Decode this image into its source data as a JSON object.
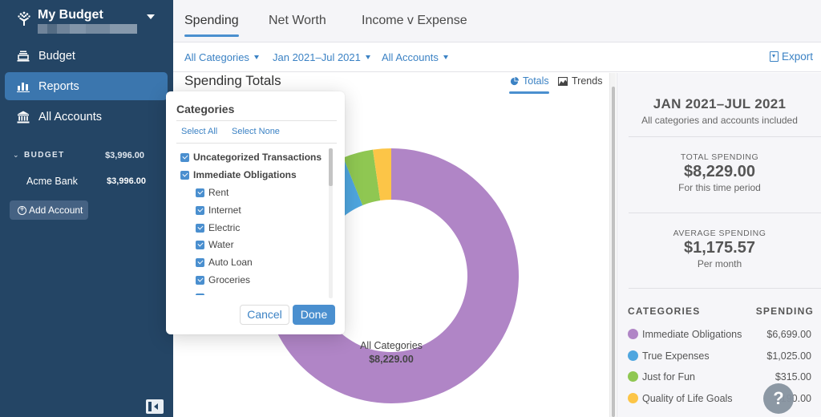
{
  "sidebar": {
    "budget_name": "My Budget",
    "nav": [
      {
        "label": "Budget",
        "icon": "budget-icon",
        "active": false
      },
      {
        "label": "Reports",
        "icon": "bar-chart-icon",
        "active": true
      },
      {
        "label": "All Accounts",
        "icon": "bank-icon",
        "active": false
      }
    ],
    "account_group": {
      "label": "BUDGET",
      "amount": "$3,996.00"
    },
    "accounts": [
      {
        "name": "Acme Bank",
        "amount": "$3,996.00"
      }
    ],
    "add_account_label": "Add Account"
  },
  "tabs": [
    {
      "label": "Spending",
      "active": true
    },
    {
      "label": "Net Worth",
      "active": false
    },
    {
      "label": "Income v Expense",
      "active": false
    }
  ],
  "filters": {
    "categories": "All Categories",
    "date_range": "Jan 2021–Jul 2021",
    "accounts": "All Accounts",
    "export_label": "Export"
  },
  "content": {
    "title": "Spending Totals",
    "view_toggle": {
      "totals": "Totals",
      "trends": "Trends"
    },
    "donut_center": {
      "label": "All Categories",
      "value": "$8,229.00"
    }
  },
  "popover": {
    "title": "Categories",
    "select_all": "Select All",
    "select_none": "Select None",
    "items": [
      {
        "label": "Uncategorized Transactions",
        "level": 0,
        "checked": true
      },
      {
        "label": "Immediate Obligations",
        "level": 0,
        "checked": true
      },
      {
        "label": "Rent",
        "level": 1,
        "checked": true
      },
      {
        "label": "Internet",
        "level": 1,
        "checked": true
      },
      {
        "label": "Electric",
        "level": 1,
        "checked": true
      },
      {
        "label": "Water",
        "level": 1,
        "checked": true
      },
      {
        "label": "Auto Loan",
        "level": 1,
        "checked": true
      },
      {
        "label": "Groceries",
        "level": 1,
        "checked": true
      }
    ],
    "cancel_label": "Cancel",
    "done_label": "Done"
  },
  "summary": {
    "range": "JAN 2021–JUL 2021",
    "range_note": "All categories and accounts included",
    "total": {
      "caption": "TOTAL SPENDING",
      "value": "$8,229.00",
      "note": "For this time period"
    },
    "average": {
      "caption": "AVERAGE SPENDING",
      "value": "$1,175.57",
      "note": "Per month"
    },
    "table_headers": {
      "category": "CATEGORIES",
      "spending": "SPENDING"
    },
    "categories": [
      {
        "name": "Immediate Obligations",
        "amount": "$6,699.00",
        "color": "#b085c6"
      },
      {
        "name": "True Expenses",
        "amount": "$1,025.00",
        "color": "#4fa6df"
      },
      {
        "name": "Just for Fun",
        "amount": "$315.00",
        "color": "#8fc752"
      },
      {
        "name": "Quality of Life Goals",
        "amount": "$190.00",
        "color": "#fcc547"
      }
    ]
  },
  "help_label": "?",
  "colors": {
    "sidebar_bg": "#244565",
    "active_nav": "#3b76ae",
    "accent": "#4a8fcf",
    "link": "#3b82c4"
  },
  "chart_data": {
    "type": "pie",
    "title": "Spending Totals",
    "center_label": "All Categories",
    "center_value": "$8,229.00",
    "categories": [
      "Immediate Obligations",
      "True Expenses",
      "Just for Fun",
      "Quality of Life Goals"
    ],
    "values": [
      6699.0,
      1025.0,
      315.0,
      190.0
    ],
    "colors": [
      "#b085c6",
      "#4fa6df",
      "#8fc752",
      "#fcc547"
    ],
    "total": 8229.0,
    "donut": true,
    "start_angle": "12 o'clock, clockwise"
  }
}
